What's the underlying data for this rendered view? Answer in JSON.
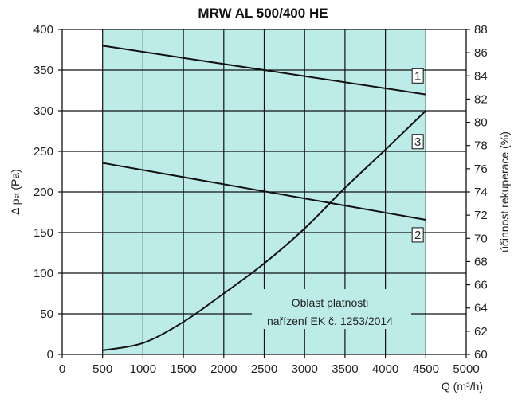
{
  "chart_data": {
    "type": "line",
    "title": "MRW AL 500/400 HE",
    "xlabel": "Q (m³/h)",
    "ylabel": "Δ pst (Pa)",
    "ylabel_main": "Δ p",
    "ylabel_sub": "st",
    "ylabel_unit": " (Pa)",
    "y2label": "účinnost rekuperace (%)",
    "xlim": [
      0,
      5000
    ],
    "ylim": [
      0,
      400
    ],
    "y2lim": [
      60,
      88
    ],
    "grid": true,
    "x_ticks": [
      "0",
      "500",
      "1000",
      "1500",
      "2000",
      "2500",
      "3000",
      "3500",
      "4000",
      "4500",
      "5000"
    ],
    "y_ticks": [
      "0",
      "50",
      "100",
      "150",
      "200",
      "250",
      "300",
      "350",
      "400"
    ],
    "y2_ticks": [
      "60",
      "62",
      "64",
      "66",
      "68",
      "70",
      "72",
      "74",
      "76",
      "78",
      "80",
      "82",
      "84",
      "86",
      "88"
    ],
    "region": {
      "x_from": 500,
      "x_to": 4500,
      "color": "#bdece8",
      "label_line1": "Oblast platnosti",
      "label_line2": "nařízení EK č. 1253/2014"
    },
    "series": [
      {
        "name": "1",
        "axis": "right",
        "x": [
          500,
          4500
        ],
        "y": [
          86.6,
          82.4
        ],
        "label_at": [
          4400,
          84.0
        ]
      },
      {
        "name": "2",
        "axis": "right",
        "x": [
          500,
          4500
        ],
        "y": [
          76.5,
          71.6
        ],
        "label_at": [
          4400,
          70.3
        ]
      },
      {
        "name": "3",
        "axis": "left",
        "x": [
          500,
          1000,
          1500,
          2000,
          2500,
          3000,
          3500,
          4000,
          4500
        ],
        "y": [
          5,
          14,
          40,
          75,
          112,
          155,
          205,
          252,
          300
        ],
        "label_at": [
          4400,
          262
        ]
      }
    ]
  }
}
